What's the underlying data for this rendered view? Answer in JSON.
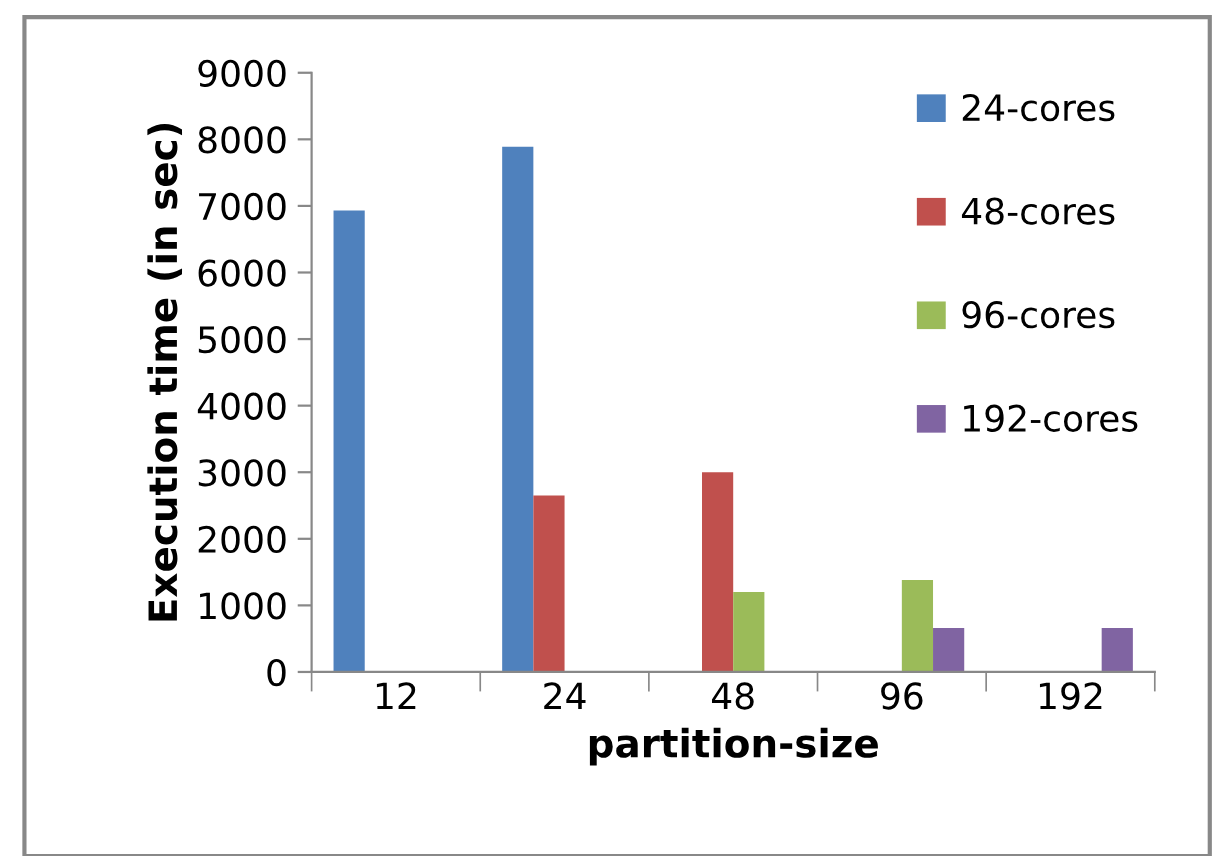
{
  "chart_data": {
    "type": "bar",
    "xlabel": "partition-size",
    "ylabel": "Execution time (in sec)",
    "categories": [
      "12",
      "24",
      "48",
      "96",
      "192"
    ],
    "ylim": [
      0,
      9000
    ],
    "yticks": [
      0,
      1000,
      2000,
      3000,
      4000,
      5000,
      6000,
      7000,
      8000,
      9000
    ],
    "grid": false,
    "legend": "right",
    "series": [
      {
        "name": "24-cores",
        "color": "#4f81bd",
        "values": [
          6930,
          7890,
          null,
          null,
          null
        ]
      },
      {
        "name": "48-cores",
        "color": "#c0504d",
        "values": [
          null,
          2650,
          3000,
          null,
          null
        ]
      },
      {
        "name": "96-cores",
        "color": "#9bbb59",
        "values": [
          null,
          null,
          1200,
          1380,
          null
        ]
      },
      {
        "name": "192-cores",
        "color": "#8064a2",
        "values": [
          null,
          null,
          null,
          660,
          660
        ]
      }
    ]
  }
}
